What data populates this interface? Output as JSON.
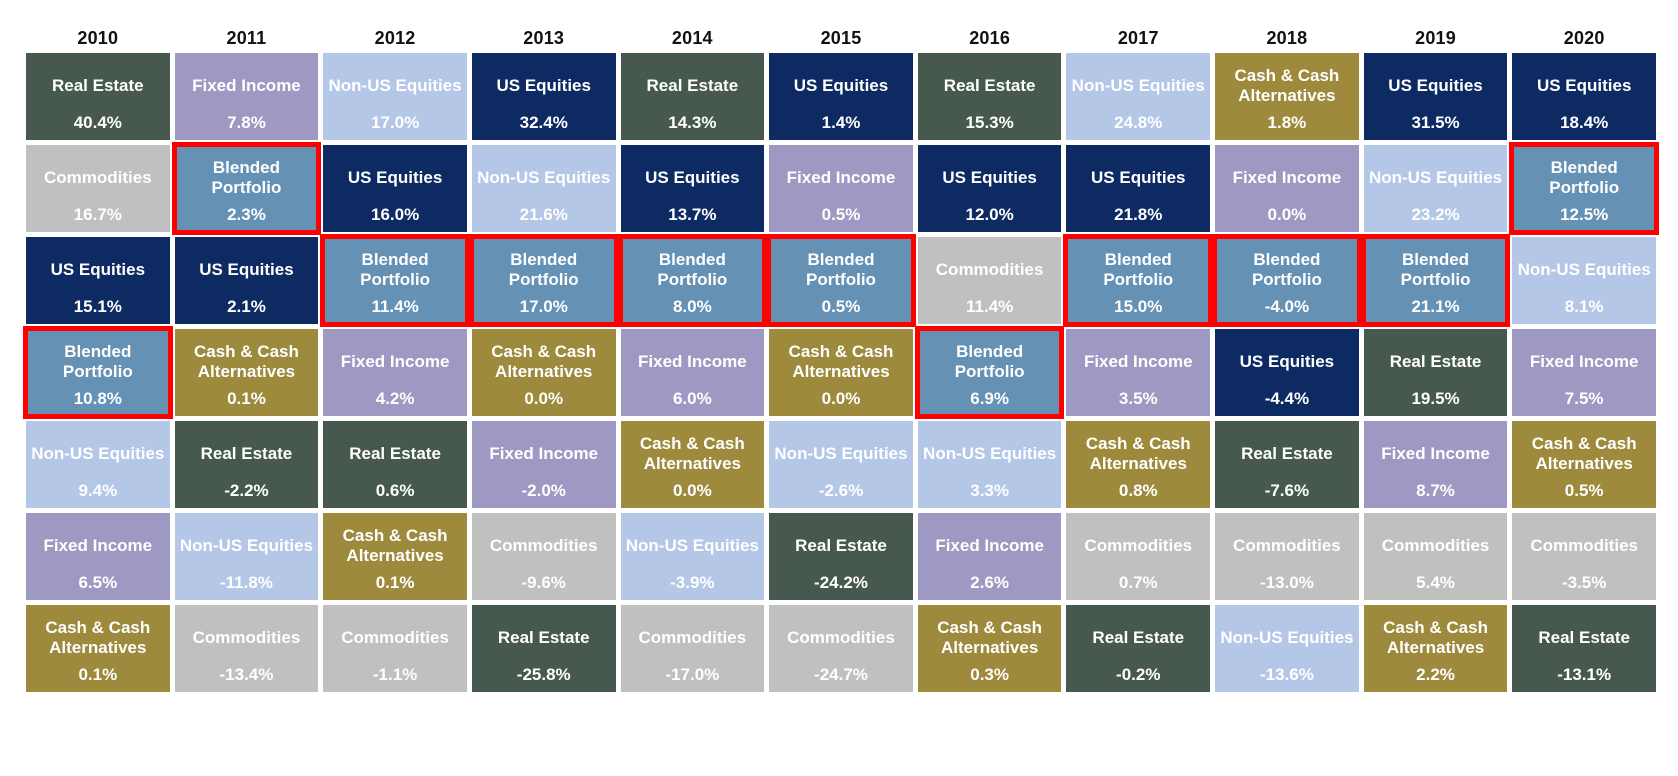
{
  "chart_data": {
    "type": "table",
    "subtype": "asset-class-returns-quilt",
    "title": "",
    "legend_position": "none",
    "highlight_border_color": "#fe0000",
    "text_color": "#ffffff",
    "header_text_color": "#111111",
    "colors": {
      "US Equities": "#0d2a63",
      "Non-US Equities": "#b4c7e7",
      "Real Estate": "#47594f",
      "Fixed Income": "#9e99c2",
      "Cash & Cash Alternatives": "#9d8a3c",
      "Commodities": "#c0c0c0",
      "Blended Portfolio": "#6591b5"
    },
    "asset_classes": [
      "US Equities",
      "Non-US Equities",
      "Real Estate",
      "Fixed Income",
      "Cash & Cash Alternatives",
      "Commodities",
      "Blended Portfolio"
    ],
    "columns": [
      {
        "year": "2010",
        "cells": [
          {
            "asset": "Real Estate",
            "value": "40.4%",
            "highlighted": false
          },
          {
            "asset": "Commodities",
            "value": "16.7%",
            "highlighted": false
          },
          {
            "asset": "US Equities",
            "value": "15.1%",
            "highlighted": false
          },
          {
            "asset": "Blended Portfolio",
            "value": "10.8%",
            "highlighted": true
          },
          {
            "asset": "Non-US Equities",
            "value": "9.4%",
            "highlighted": false
          },
          {
            "asset": "Fixed Income",
            "value": "6.5%",
            "highlighted": false
          },
          {
            "asset": "Cash & Cash Alternatives",
            "value": "0.1%",
            "highlighted": false
          }
        ]
      },
      {
        "year": "2011",
        "cells": [
          {
            "asset": "Fixed Income",
            "value": "7.8%",
            "highlighted": false
          },
          {
            "asset": "Blended Portfolio",
            "value": "2.3%",
            "highlighted": true
          },
          {
            "asset": "US Equities",
            "value": "2.1%",
            "highlighted": false
          },
          {
            "asset": "Cash & Cash Alternatives",
            "value": "0.1%",
            "highlighted": false
          },
          {
            "asset": "Real Estate",
            "value": "-2.2%",
            "highlighted": false
          },
          {
            "asset": "Non-US Equities",
            "value": "-11.8%",
            "highlighted": false
          },
          {
            "asset": "Commodities",
            "value": "-13.4%",
            "highlighted": false
          }
        ]
      },
      {
        "year": "2012",
        "cells": [
          {
            "asset": "Non-US Equities",
            "value": "17.0%",
            "highlighted": false
          },
          {
            "asset": "US Equities",
            "value": "16.0%",
            "highlighted": false
          },
          {
            "asset": "Blended Portfolio",
            "value": "11.4%",
            "highlighted": true
          },
          {
            "asset": "Fixed Income",
            "value": "4.2%",
            "highlighted": false
          },
          {
            "asset": "Real Estate",
            "value": "0.6%",
            "highlighted": false
          },
          {
            "asset": "Cash & Cash Alternatives",
            "value": "0.1%",
            "highlighted": false
          },
          {
            "asset": "Commodities",
            "value": "-1.1%",
            "highlighted": false
          }
        ]
      },
      {
        "year": "2013",
        "cells": [
          {
            "asset": "US Equities",
            "value": "32.4%",
            "highlighted": false
          },
          {
            "asset": "Non-US Equities",
            "value": "21.6%",
            "highlighted": false
          },
          {
            "asset": "Blended Portfolio",
            "value": "17.0%",
            "highlighted": true
          },
          {
            "asset": "Cash & Cash Alternatives",
            "value": "0.0%",
            "highlighted": false
          },
          {
            "asset": "Fixed Income",
            "value": "-2.0%",
            "highlighted": false
          },
          {
            "asset": "Commodities",
            "value": "-9.6%",
            "highlighted": false
          },
          {
            "asset": "Real Estate",
            "value": "-25.8%",
            "highlighted": false
          }
        ]
      },
      {
        "year": "2014",
        "cells": [
          {
            "asset": "Real Estate",
            "value": "14.3%",
            "highlighted": false
          },
          {
            "asset": "US Equities",
            "value": "13.7%",
            "highlighted": false
          },
          {
            "asset": "Blended Portfolio",
            "value": "8.0%",
            "highlighted": true
          },
          {
            "asset": "Fixed Income",
            "value": "6.0%",
            "highlighted": false
          },
          {
            "asset": "Cash & Cash Alternatives",
            "value": "0.0%",
            "highlighted": false
          },
          {
            "asset": "Non-US Equities",
            "value": "-3.9%",
            "highlighted": false
          },
          {
            "asset": "Commodities",
            "value": "-17.0%",
            "highlighted": false
          }
        ]
      },
      {
        "year": "2015",
        "cells": [
          {
            "asset": "US Equities",
            "value": "1.4%",
            "highlighted": false
          },
          {
            "asset": "Fixed Income",
            "value": "0.5%",
            "highlighted": false
          },
          {
            "asset": "Blended Portfolio",
            "value": "0.5%",
            "highlighted": true
          },
          {
            "asset": "Cash & Cash Alternatives",
            "value": "0.0%",
            "highlighted": false
          },
          {
            "asset": "Non-US Equities",
            "value": "-2.6%",
            "highlighted": false
          },
          {
            "asset": "Real Estate",
            "value": "-24.2%",
            "highlighted": false
          },
          {
            "asset": "Commodities",
            "value": "-24.7%",
            "highlighted": false
          }
        ]
      },
      {
        "year": "2016",
        "cells": [
          {
            "asset": "Real Estate",
            "value": "15.3%",
            "highlighted": false
          },
          {
            "asset": "US Equities",
            "value": "12.0%",
            "highlighted": false
          },
          {
            "asset": "Commodities",
            "value": "11.4%",
            "highlighted": false
          },
          {
            "asset": "Blended Portfolio",
            "value": "6.9%",
            "highlighted": true
          },
          {
            "asset": "Non-US Equities",
            "value": "3.3%",
            "highlighted": false
          },
          {
            "asset": "Fixed Income",
            "value": "2.6%",
            "highlighted": false
          },
          {
            "asset": "Cash & Cash Alternatives",
            "value": "0.3%",
            "highlighted": false
          }
        ]
      },
      {
        "year": "2017",
        "cells": [
          {
            "asset": "Non-US Equities",
            "value": "24.8%",
            "highlighted": false
          },
          {
            "asset": "US Equities",
            "value": "21.8%",
            "highlighted": false
          },
          {
            "asset": "Blended Portfolio",
            "value": "15.0%",
            "highlighted": true
          },
          {
            "asset": "Fixed Income",
            "value": "3.5%",
            "highlighted": false
          },
          {
            "asset": "Cash & Cash Alternatives",
            "value": "0.8%",
            "highlighted": false
          },
          {
            "asset": "Commodities",
            "value": "0.7%",
            "highlighted": false
          },
          {
            "asset": "Real Estate",
            "value": "-0.2%",
            "highlighted": false
          }
        ]
      },
      {
        "year": "2018",
        "cells": [
          {
            "asset": "Cash & Cash Alternatives",
            "value": "1.8%",
            "highlighted": false
          },
          {
            "asset": "Fixed Income",
            "value": "0.0%",
            "highlighted": false
          },
          {
            "asset": "Blended Portfolio",
            "value": "-4.0%",
            "highlighted": true
          },
          {
            "asset": "US Equities",
            "value": "-4.4%",
            "highlighted": false
          },
          {
            "asset": "Real Estate",
            "value": "-7.6%",
            "highlighted": false
          },
          {
            "asset": "Commodities",
            "value": "-13.0%",
            "highlighted": false
          },
          {
            "asset": "Non-US Equities",
            "value": "-13.6%",
            "highlighted": false
          }
        ]
      },
      {
        "year": "2019",
        "cells": [
          {
            "asset": "US Equities",
            "value": "31.5%",
            "highlighted": false
          },
          {
            "asset": "Non-US Equities",
            "value": "23.2%",
            "highlighted": false
          },
          {
            "asset": "Blended Portfolio",
            "value": "21.1%",
            "highlighted": true
          },
          {
            "asset": "Real Estate",
            "value": "19.5%",
            "highlighted": false
          },
          {
            "asset": "Fixed Income",
            "value": "8.7%",
            "highlighted": false
          },
          {
            "asset": "Commodities",
            "value": "5.4%",
            "highlighted": false
          },
          {
            "asset": "Cash & Cash Alternatives",
            "value": "2.2%",
            "highlighted": false
          }
        ]
      },
      {
        "year": "2020",
        "cells": [
          {
            "asset": "US Equities",
            "value": "18.4%",
            "highlighted": false
          },
          {
            "asset": "Blended Portfolio",
            "value": "12.5%",
            "highlighted": true
          },
          {
            "asset": "Non-US Equities",
            "value": "8.1%",
            "highlighted": false
          },
          {
            "asset": "Fixed Income",
            "value": "7.5%",
            "highlighted": false
          },
          {
            "asset": "Cash & Cash Alternatives",
            "value": "0.5%",
            "highlighted": false
          },
          {
            "asset": "Commodities",
            "value": "-3.5%",
            "highlighted": false
          },
          {
            "asset": "Real Estate",
            "value": "-13.1%",
            "highlighted": false
          }
        ]
      }
    ]
  }
}
